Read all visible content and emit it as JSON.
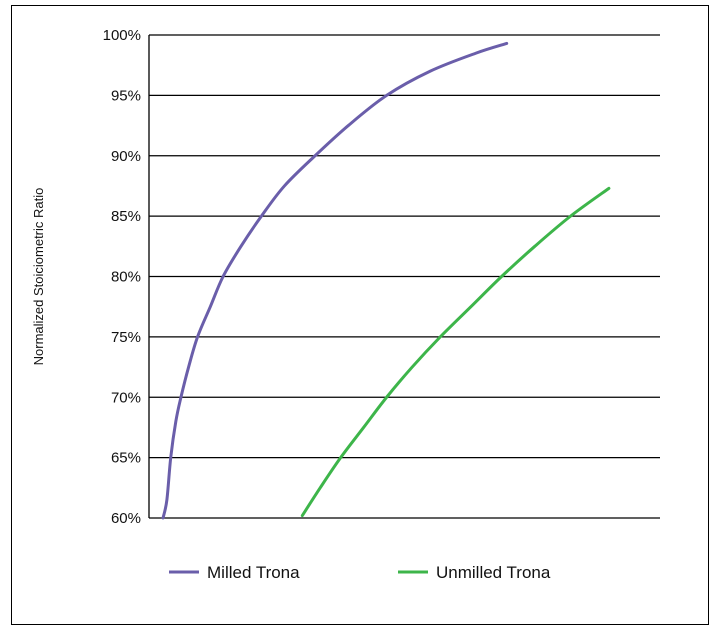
{
  "chart_data": {
    "type": "line",
    "title": "",
    "xlabel": "",
    "ylabel": "Normalized Stoiciometric Ratio",
    "ylim": [
      60,
      100
    ],
    "yticks": [
      "60%",
      "65%",
      "70%",
      "75%",
      "80%",
      "85%",
      "90%",
      "95%",
      "100%"
    ],
    "grid": true,
    "legend_position": "bottom",
    "series": [
      {
        "name": "Milled Trona",
        "color": "#6A5EAA",
        "points": [
          [
            0.055,
            60.0
          ],
          [
            0.07,
            61.5
          ],
          [
            0.085,
            65.0
          ],
          [
            0.105,
            68.0
          ],
          [
            0.125,
            70.0
          ],
          [
            0.155,
            72.5
          ],
          [
            0.19,
            75.0
          ],
          [
            0.24,
            77.5
          ],
          [
            0.29,
            80.0
          ],
          [
            0.36,
            82.5
          ],
          [
            0.44,
            85.0
          ],
          [
            0.53,
            87.5
          ],
          [
            0.65,
            90.0
          ],
          [
            0.78,
            92.5
          ],
          [
            0.93,
            95.0
          ],
          [
            1.1,
            97.0
          ],
          [
            1.28,
            98.5
          ],
          [
            1.4,
            99.3
          ]
        ]
      },
      {
        "name": "Unmilled Trona",
        "color": "#3DB54A",
        "points": [
          [
            0.6,
            60.2
          ],
          [
            0.67,
            62.5
          ],
          [
            0.75,
            65.0
          ],
          [
            0.84,
            67.5
          ],
          [
            0.93,
            70.0
          ],
          [
            1.03,
            72.5
          ],
          [
            1.14,
            75.0
          ],
          [
            1.26,
            77.5
          ],
          [
            1.38,
            80.0
          ],
          [
            1.51,
            82.5
          ],
          [
            1.65,
            85.0
          ],
          [
            1.8,
            87.3
          ]
        ]
      }
    ]
  }
}
